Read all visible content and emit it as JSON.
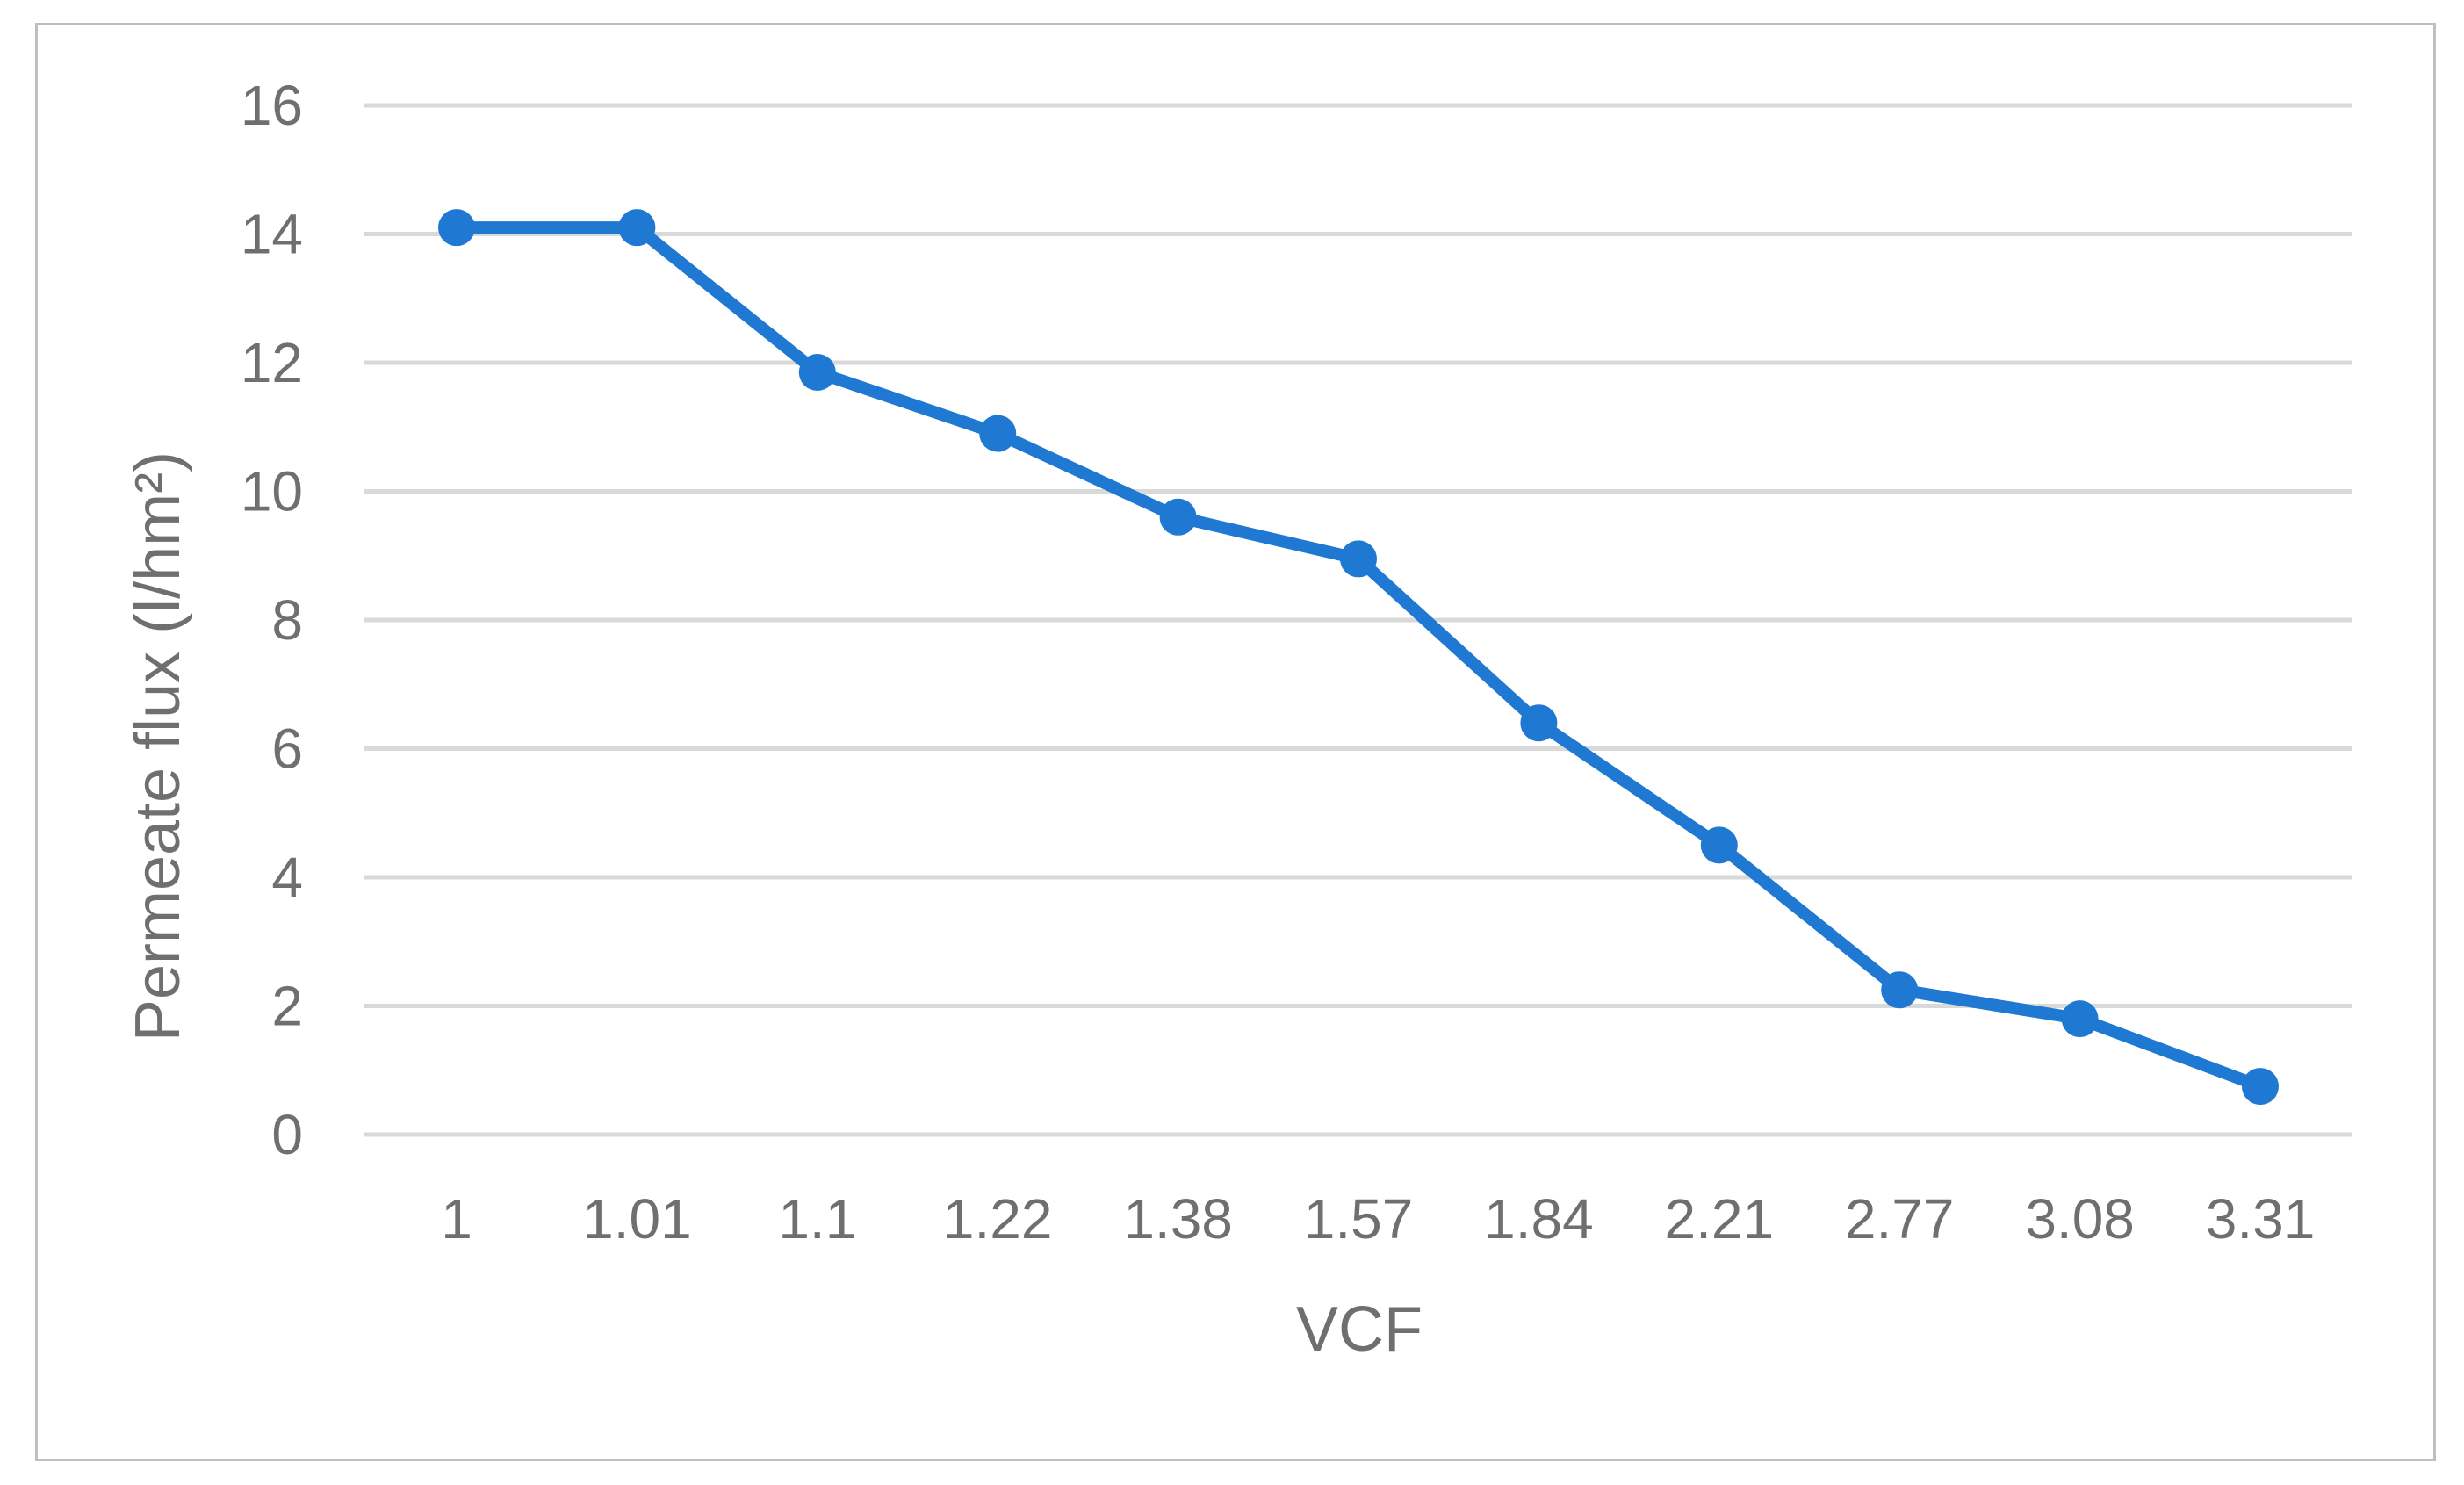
{
  "chart_data": {
    "type": "line",
    "title": "",
    "xlabel": "VCF",
    "ylabel": "Permeate flux (l/hm²)",
    "categories": [
      "1",
      "1.01",
      "1.1",
      "1.22",
      "1.38",
      "1.57",
      "1.84",
      "2.21",
      "2.77",
      "3.08",
      "3.31"
    ],
    "series": [
      {
        "values": [
          14.1,
          14.1,
          11.85,
          10.9,
          9.6,
          8.95,
          6.4,
          4.5,
          2.25,
          1.8,
          0.75
        ]
      }
    ],
    "ylim": [
      0,
      16
    ],
    "yticks": [
      0,
      2,
      4,
      6,
      8,
      10,
      12,
      14,
      16
    ],
    "grid": true,
    "legend": "none",
    "colors": {
      "series": "#1f78d1",
      "grid": "#d9d9d9",
      "text": "#6f6f6f",
      "frame": "#bfbfbf"
    }
  }
}
